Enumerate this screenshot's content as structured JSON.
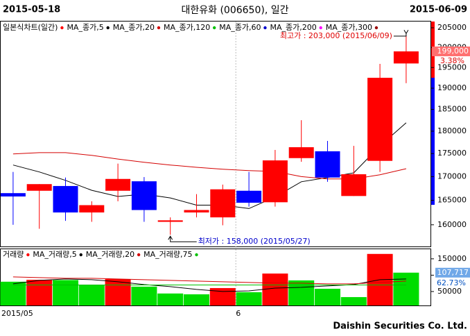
{
  "header": {
    "start_date": "2015-05-18",
    "title": "대한유화 (006650), 일간",
    "end_date": "2015-06-09"
  },
  "footer": {
    "company": "Daishin Securities Co. Ltd."
  },
  "chart_data": [
    {
      "type": "candlestick",
      "legend_title": "일본식차트(일간)",
      "x": [
        "2015-05-18",
        "2015-05-19",
        "2015-05-20",
        "2015-05-21",
        "2015-05-22",
        "2015-05-26",
        "2015-05-27",
        "2015-05-28",
        "2015-05-29",
        "2015-06-01",
        "2015-06-02",
        "2015-06-03",
        "2015-06-04",
        "2015-06-05",
        "2015-06-08",
        "2015-06-09"
      ],
      "open": [
        166500,
        167000,
        168000,
        162500,
        167000,
        169000,
        160600,
        162500,
        161500,
        167000,
        164600,
        174000,
        175500,
        165900,
        173400,
        196000
      ],
      "high": [
        171000,
        168400,
        169800,
        164800,
        172800,
        169900,
        161500,
        166300,
        168300,
        171000,
        175800,
        182500,
        177800,
        176700,
        195900,
        203000
      ],
      "low": [
        160000,
        159200,
        160800,
        160600,
        164800,
        160600,
        158000,
        161500,
        159900,
        163700,
        163700,
        173200,
        168900,
        165900,
        171000,
        191200
      ],
      "close": [
        165800,
        168400,
        162500,
        164000,
        169500,
        163000,
        160900,
        163000,
        167300,
        164500,
        173500,
        176400,
        169800,
        170500,
        192500,
        199000
      ],
      "up_color": "#ff0000",
      "down_color": "#0000ff",
      "series": [
        {
          "name": "MA_종가,5",
          "color": "#000000",
          "values": [
            172500,
            171000,
            169200,
            167100,
            165800,
            166300,
            165500,
            164000,
            164000,
            163300,
            165700,
            168900,
            169800,
            170800,
            176700,
            181900
          ]
        },
        {
          "name": "MA_종가,20",
          "color": "#d40000",
          "values": [
            174900,
            175200,
            175200,
            174600,
            173800,
            173100,
            172500,
            172000,
            171600,
            171300,
            171100,
            170000,
            169500,
            169500,
            170400,
            171700
          ]
        },
        {
          "name": "MA_종가,120",
          "color": "#00c000"
        },
        {
          "name": "MA_종가,60",
          "color": "#0000cc"
        },
        {
          "name": "MA_종가,200",
          "color": "#ff00ff"
        },
        {
          "name": "MA_종가,300",
          "color": "#990000"
        }
      ],
      "ylim": [
        155700,
        206800
      ],
      "log_scale": true,
      "yticks": [
        160000,
        165000,
        170000,
        175000,
        180000,
        185000,
        190000,
        195000,
        200000,
        205000
      ],
      "xticks": [
        {
          "value": "2015-05-18",
          "label": "2015/05"
        },
        {
          "value": "2015-06-01",
          "label": "6"
        }
      ],
      "high_annotation": "최고가 : 203,000 (2015/06/09)",
      "low_annotation": "최저가 : 158,000 (2015/05/27)",
      "last_value_label": "199,000",
      "change_label": "3.38%"
    },
    {
      "type": "bar",
      "legend_title": "거래량",
      "values": [
        80000,
        86000,
        85000,
        69000,
        88000,
        65000,
        44000,
        41500,
        60600,
        48000,
        105000,
        84000,
        58500,
        33000,
        165000,
        107717
      ],
      "up_color": "#ff0000",
      "down_color": "#00dd00",
      "series": [
        {
          "name": "MA_거래량,5",
          "color": "#000000",
          "values": [
            73400,
            84000,
            88300,
            86200,
            79800,
            71300,
            64900,
            56400,
            50000,
            52100,
            60600,
            62800,
            67000,
            71300,
            86200,
            88300
          ]
        },
        {
          "name": "MA_거래량,20",
          "color": "#d40000",
          "values": [
            94700,
            92600,
            90400,
            90400,
            88300,
            86200,
            84000,
            81900,
            79800,
            77700,
            75500,
            75500,
            73400,
            73400,
            77700,
            81900
          ]
        },
        {
          "name": "MA_거래량,75",
          "color": "#00c000",
          "values": [
            70000,
            70000,
            70000,
            70000,
            70000,
            70000,
            70000,
            70000,
            70000,
            70000,
            70000,
            70000,
            70000,
            70000,
            70000,
            70000
          ]
        }
      ],
      "ylim": [
        0,
        173000
      ],
      "yticks": [
        50000,
        100000,
        150000
      ],
      "last_value_label": "107,717",
      "change_label": "62.73%"
    }
  ]
}
